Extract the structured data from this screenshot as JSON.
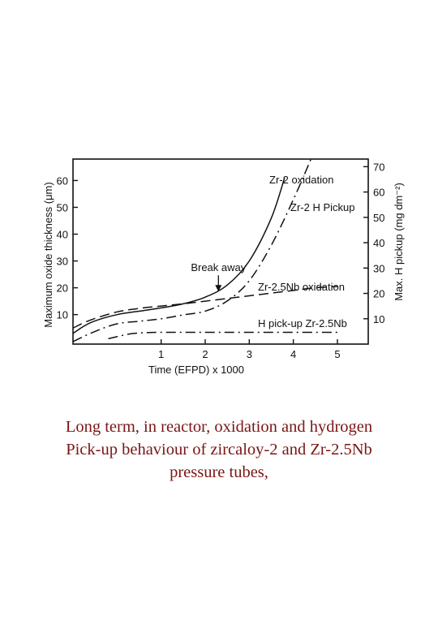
{
  "chart_data": {
    "type": "line",
    "xlabel": "Time (EFPD) x 1000",
    "ylabel_left": "Maximum oxide thickness (μm)",
    "ylabel_right": "Max. H pickup (mg dm⁻²)",
    "xlim": [
      -1,
      5.7
    ],
    "ylim_left": [
      -1,
      68
    ],
    "ylim_right": [
      0,
      73
    ],
    "x_ticks": [
      "1",
      "2",
      "3",
      "4",
      "5"
    ],
    "x_tick_values": [
      1,
      2,
      3,
      4,
      5
    ],
    "y_ticks_left": [
      "10",
      "20",
      "30",
      "40",
      "50",
      "60"
    ],
    "y_tick_values_left": [
      10,
      20,
      30,
      40,
      50,
      60
    ],
    "y_ticks_right": [
      "10",
      "20",
      "30",
      "40",
      "50",
      "60",
      "70"
    ],
    "y_tick_values_right": [
      10,
      20,
      30,
      40,
      50,
      60,
      70
    ],
    "grid": false,
    "legend": "none",
    "series": [
      {
        "name": "Zr-2  oxidation",
        "axis": "left",
        "style": "solid",
        "x": [
          -1.0,
          -0.6,
          0.0,
          0.6,
          1.0,
          1.5,
          2.0,
          2.5,
          3.0,
          3.5,
          3.8
        ],
        "y": [
          3,
          7,
          10,
          11.5,
          12.5,
          14,
          16.5,
          21,
          30,
          46,
          61
        ]
      },
      {
        "name": "Zr-2  H Pickup",
        "axis": "right",
        "style": "dash-dot",
        "x": [
          -1.0,
          -0.5,
          0.0,
          0.5,
          1.0,
          1.5,
          2.0,
          2.5,
          3.0,
          3.5,
          4.0,
          4.4
        ],
        "y": [
          1,
          5,
          8,
          9,
          10,
          11.5,
          13,
          17,
          25,
          39,
          57,
          73
        ]
      },
      {
        "name": "Zr-2.5Nb  oxidation",
        "axis": "left",
        "style": "dashed",
        "x": [
          -1.0,
          -0.6,
          0.0,
          0.5,
          1.0,
          1.5,
          2.0,
          2.5,
          3.0,
          3.5,
          4.0,
          4.5,
          5.0
        ],
        "y": [
          5,
          8,
          11,
          12.3,
          13.2,
          14,
          15,
          16,
          17,
          18,
          19,
          20,
          20.5
        ]
      },
      {
        "name": "H  pick-up  Zr-2.5Nb",
        "axis": "left",
        "style": "dash-dot",
        "x": [
          -0.2,
          0.3,
          0.7,
          1.0,
          2.0,
          3.0,
          4.0,
          5.0
        ],
        "y": [
          1,
          2.8,
          3.3,
          3.4,
          3.4,
          3.4,
          3.4,
          3.4
        ]
      }
    ],
    "annotations": [
      {
        "text": "Break  away",
        "x": 2.3,
        "y": 18
      }
    ]
  },
  "caption": {
    "line1": "Long term, in reactor, oxidation and hydrogen",
    "line2": "Pick-up behaviour of zircaloy-2 and Zr-2.5Nb",
    "line3": "pressure tubes,",
    "color": "#7a1515"
  }
}
